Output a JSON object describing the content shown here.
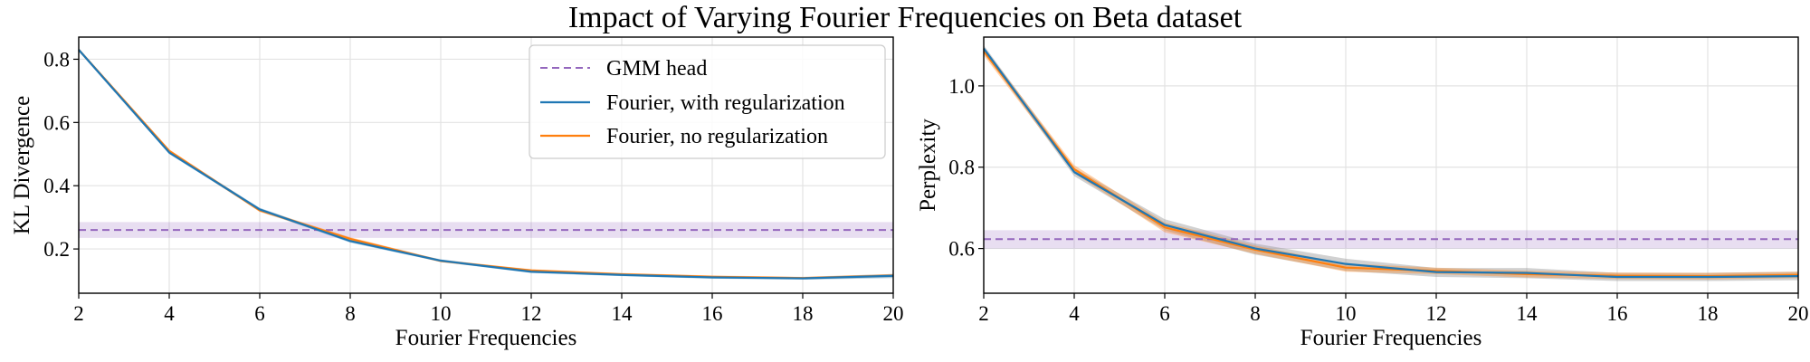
{
  "figure": {
    "suptitle": "Impact of Varying Fourier Frequencies on Beta dataset"
  },
  "colors": {
    "gmm": "#9467bd",
    "fourier_reg": "#1f77b4",
    "fourier_noreg": "#ff7f0e",
    "grid": "#e3e3e3",
    "band_gray": "#9a9a9a"
  },
  "legend": {
    "placement": "top-right (left subplot)",
    "items": [
      {
        "label": "GMM head",
        "style": "dashed",
        "color": "#9467bd"
      },
      {
        "label": "Fourier, with regularization",
        "style": "solid",
        "color": "#1f77b4"
      },
      {
        "label": "Fourier, no regularization",
        "style": "solid",
        "color": "#ff7f0e"
      }
    ]
  },
  "chart_data": [
    {
      "type": "line",
      "title": "",
      "xlabel": "Fourier Frequencies",
      "ylabel": "KL Divergence",
      "xlim": [
        2,
        20
      ],
      "ylim": [
        0.06,
        0.87
      ],
      "xticks": [
        2,
        4,
        6,
        8,
        10,
        12,
        14,
        16,
        18,
        20
      ],
      "yticks": [
        0.2,
        0.4,
        0.6,
        0.8
      ],
      "grid": true,
      "legend": "top-right",
      "hline": {
        "name": "GMM head",
        "value": 0.26,
        "band": [
          0.235,
          0.285
        ]
      },
      "x": [
        2,
        4,
        6,
        8,
        10,
        12,
        14,
        16,
        18,
        20
      ],
      "series": [
        {
          "name": "Fourier, with regularization",
          "values": [
            0.83,
            0.505,
            0.325,
            0.225,
            0.163,
            0.128,
            0.118,
            0.11,
            0.107,
            0.115
          ],
          "band": [
            [
              0.825,
              0.835
            ],
            [
              0.5,
              0.51
            ],
            [
              0.32,
              0.33
            ],
            [
              0.22,
              0.23
            ],
            [
              0.159,
              0.167
            ],
            [
              0.124,
              0.132
            ],
            [
              0.114,
              0.122
            ],
            [
              0.106,
              0.114
            ],
            [
              0.103,
              0.111
            ],
            [
              0.108,
              0.121
            ]
          ]
        },
        {
          "name": "Fourier, no regularization",
          "values": [
            0.83,
            0.51,
            0.322,
            0.232,
            0.162,
            0.132,
            0.12,
            0.112,
            0.108,
            0.116
          ],
          "band": [
            [
              0.825,
              0.835
            ],
            [
              0.505,
              0.515
            ],
            [
              0.317,
              0.327
            ],
            [
              0.227,
              0.237
            ],
            [
              0.158,
              0.166
            ],
            [
              0.128,
              0.136
            ],
            [
              0.116,
              0.124
            ],
            [
              0.108,
              0.116
            ],
            [
              0.104,
              0.112
            ],
            [
              0.111,
              0.121
            ]
          ]
        }
      ]
    },
    {
      "type": "line",
      "title": "",
      "xlabel": "Fourier Frequencies",
      "ylabel": "Perplexity",
      "xlim": [
        2,
        20
      ],
      "ylim": [
        0.49,
        1.12
      ],
      "xticks": [
        2,
        4,
        6,
        8,
        10,
        12,
        14,
        16,
        18,
        20
      ],
      "yticks": [
        0.6,
        0.8,
        1.0
      ],
      "grid": true,
      "legend": "none",
      "hline": {
        "name": "GMM head",
        "value": 0.623,
        "band": [
          0.6,
          0.645
        ]
      },
      "x": [
        2,
        4,
        6,
        8,
        10,
        12,
        14,
        16,
        18,
        20
      ],
      "series": [
        {
          "name": "Fourier, with regularization",
          "values": [
            1.092,
            0.788,
            0.658,
            0.6,
            0.562,
            0.542,
            0.54,
            0.53,
            0.53,
            0.532
          ],
          "band": [
            [
              1.085,
              1.1
            ],
            [
              0.778,
              0.798
            ],
            [
              0.645,
              0.672
            ],
            [
              0.585,
              0.612
            ],
            [
              0.545,
              0.575
            ],
            [
              0.53,
              0.552
            ],
            [
              0.527,
              0.552
            ],
            [
              0.52,
              0.54
            ],
            [
              0.52,
              0.54
            ],
            [
              0.522,
              0.543
            ]
          ],
          "band_color": "#9a9a9a"
        },
        {
          "name": "Fourier, no regularization",
          "values": [
            1.085,
            0.795,
            0.652,
            0.597,
            0.553,
            0.545,
            0.537,
            0.533,
            0.532,
            0.535
          ],
          "band": [
            [
              1.075,
              1.095
            ],
            [
              0.785,
              0.805
            ],
            [
              0.64,
              0.664
            ],
            [
              0.587,
              0.607
            ],
            [
              0.543,
              0.563
            ],
            [
              0.537,
              0.553
            ],
            [
              0.529,
              0.545
            ],
            [
              0.525,
              0.541
            ],
            [
              0.524,
              0.54
            ],
            [
              0.527,
              0.543
            ]
          ]
        }
      ]
    }
  ]
}
